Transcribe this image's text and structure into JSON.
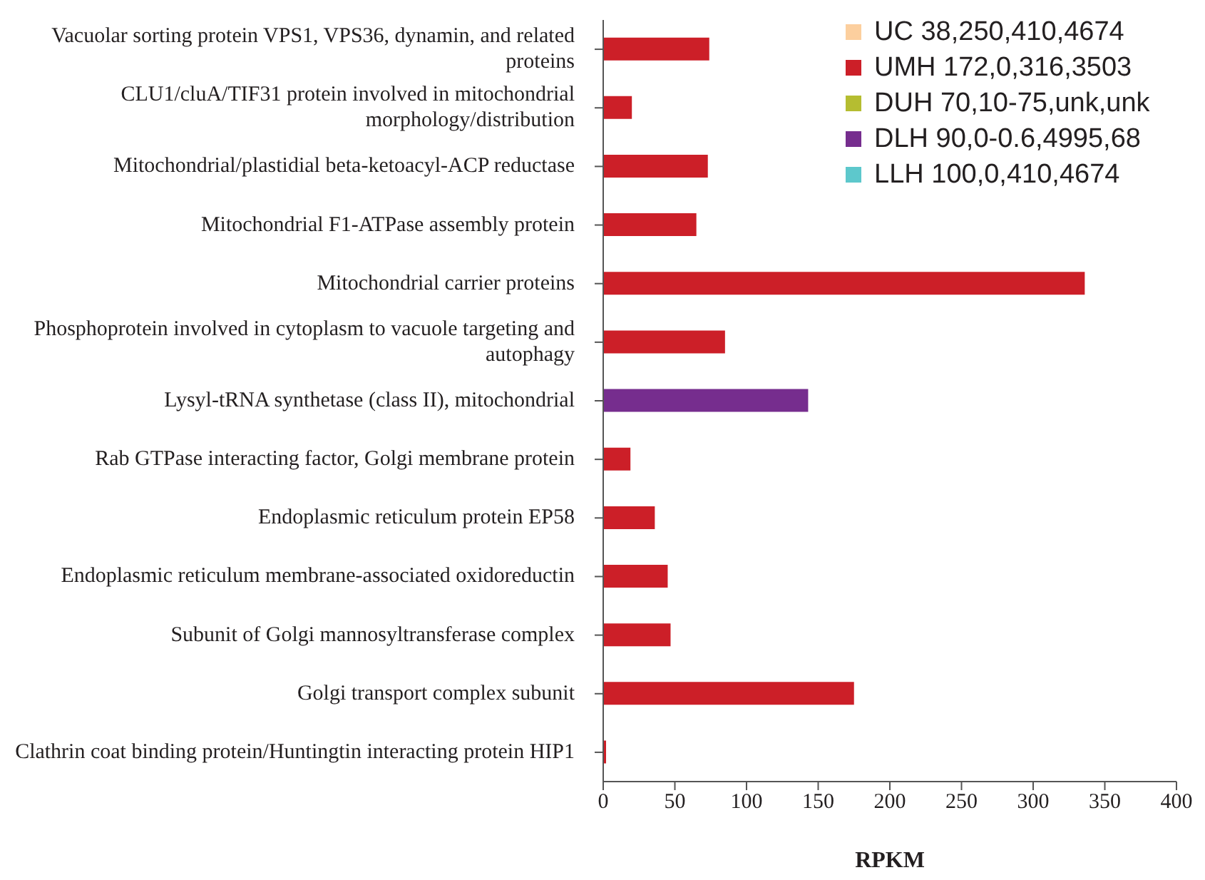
{
  "chart_data": {
    "type": "bar",
    "orientation": "horizontal",
    "stacked": true,
    "xlabel": "RPKM",
    "categories": [
      "Vacuolar sorting protein VPS1, VPS36, dynamin, and related proteins",
      "CLU1/cluA/TIF31 protein involved in mitochondrial morphology/distribution",
      "Mitochondrial/plastidial beta-ketoacyl-ACP reductase",
      "Mitochondrial F1-ATPase assembly protein",
      "Mitochondrial carrier proteins",
      "Phosphoprotein involved in cytoplasm to vacuole targeting and autophagy",
      "Lysyl-tRNA synthetase (class II), mitochondrial",
      "Rab GTPase interacting factor, Golgi membrane protein",
      "Endoplasmic reticulum protein EP58",
      "Endoplasmic reticulum membrane-associated oxidoreductin",
      "Subunit of Golgi mannosyltransferase complex",
      "Golgi transport complex subunit",
      "Clathrin coat binding protein/Huntingtin interacting protein HIP1"
    ],
    "series": [
      {
        "name": "UC 38,250,410,4674",
        "color": "#fccf9e",
        "values": [
          null,
          null,
          null,
          null,
          null,
          null,
          null,
          null,
          null,
          null,
          null,
          null,
          null
        ]
      },
      {
        "name": "UMH 172,0,316,3503",
        "color": "#cc1f28",
        "values": [
          74,
          20,
          73,
          65,
          336,
          85,
          null,
          19,
          36,
          45,
          47,
          175,
          2
        ]
      },
      {
        "name": "DUH 70,10-75,unk,unk",
        "color": "#b5bd31",
        "values": [
          null,
          null,
          null,
          null,
          null,
          null,
          null,
          null,
          null,
          null,
          null,
          null,
          null
        ]
      },
      {
        "name": "DLH 90,0-0.6,4995,68",
        "color": "#762d8e",
        "values": [
          null,
          null,
          null,
          null,
          null,
          null,
          143,
          null,
          null,
          null,
          null,
          null,
          null
        ]
      },
      {
        "name": "LLH 100,0,410,4674",
        "color": "#5dc8cc",
        "values": [
          null,
          null,
          null,
          null,
          null,
          null,
          null,
          null,
          null,
          null,
          null,
          null,
          null
        ]
      }
    ],
    "xlim": [
      0,
      400
    ],
    "xticks": [
      0,
      50,
      100,
      150,
      200,
      250,
      300,
      350,
      400
    ],
    "grid": false,
    "legend": "top right"
  }
}
